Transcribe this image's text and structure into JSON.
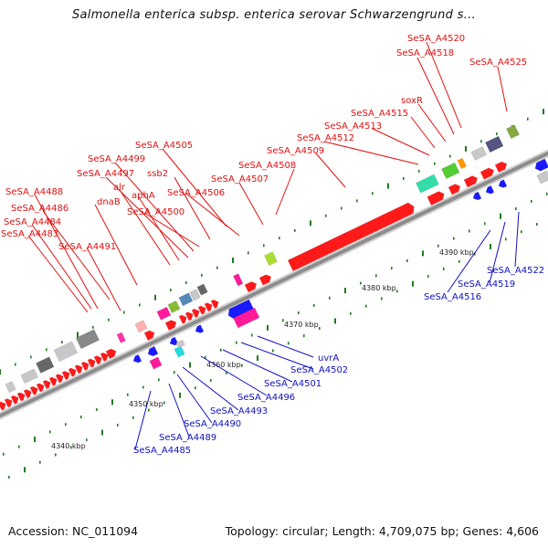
{
  "title": "Salmonella enterica subsp. enterica serovar Schwarzengrund s...",
  "footer": {
    "accession": "Accession: NC_011094",
    "stats": "Topology: circular; Length: 4,709,075 bp; Genes: 4,606"
  },
  "colors": {
    "forward": "#ff1a1a",
    "reverse": "#1a1aff",
    "backbone": "#8c8c8c",
    "tick": "#1f7a1f"
  },
  "scale_labels": [
    "4340 kbp",
    "4350 kbp",
    "4360 kbp",
    "4370 kbp",
    "4380 kbp",
    "4390 kbp"
  ],
  "forward_labels": [
    "SeSA_A4520",
    "SeSA_A4518",
    "SeSA_A4525",
    "soxR",
    "SeSA_A4515",
    "SeSA_A4513",
    "SeSA_A4512",
    "SeSA_A4509",
    "SeSA_A4508",
    "SeSA_A4505",
    "SeSA_A4507",
    "SeSA_A4499",
    "ssb2",
    "SeSA_A4497",
    "SeSA_A4506",
    "SeSA_A4488",
    "alr",
    "aphA",
    "SeSA_A4486",
    "dnaB",
    "SeSA_A4500",
    "SeSA_A4484",
    "SeSA_A4483",
    "SeSA_A4491"
  ],
  "reverse_labels": [
    "SeSA_A4522",
    "SeSA_A4519",
    "SeSA_A4516",
    "uvrA",
    "SeSA_A4502",
    "SeSA_A4501",
    "SeSA_A4496",
    "SeSA_A4493",
    "SeSA_A4490",
    "SeSA_A4489",
    "SeSA_A4485"
  ]
}
